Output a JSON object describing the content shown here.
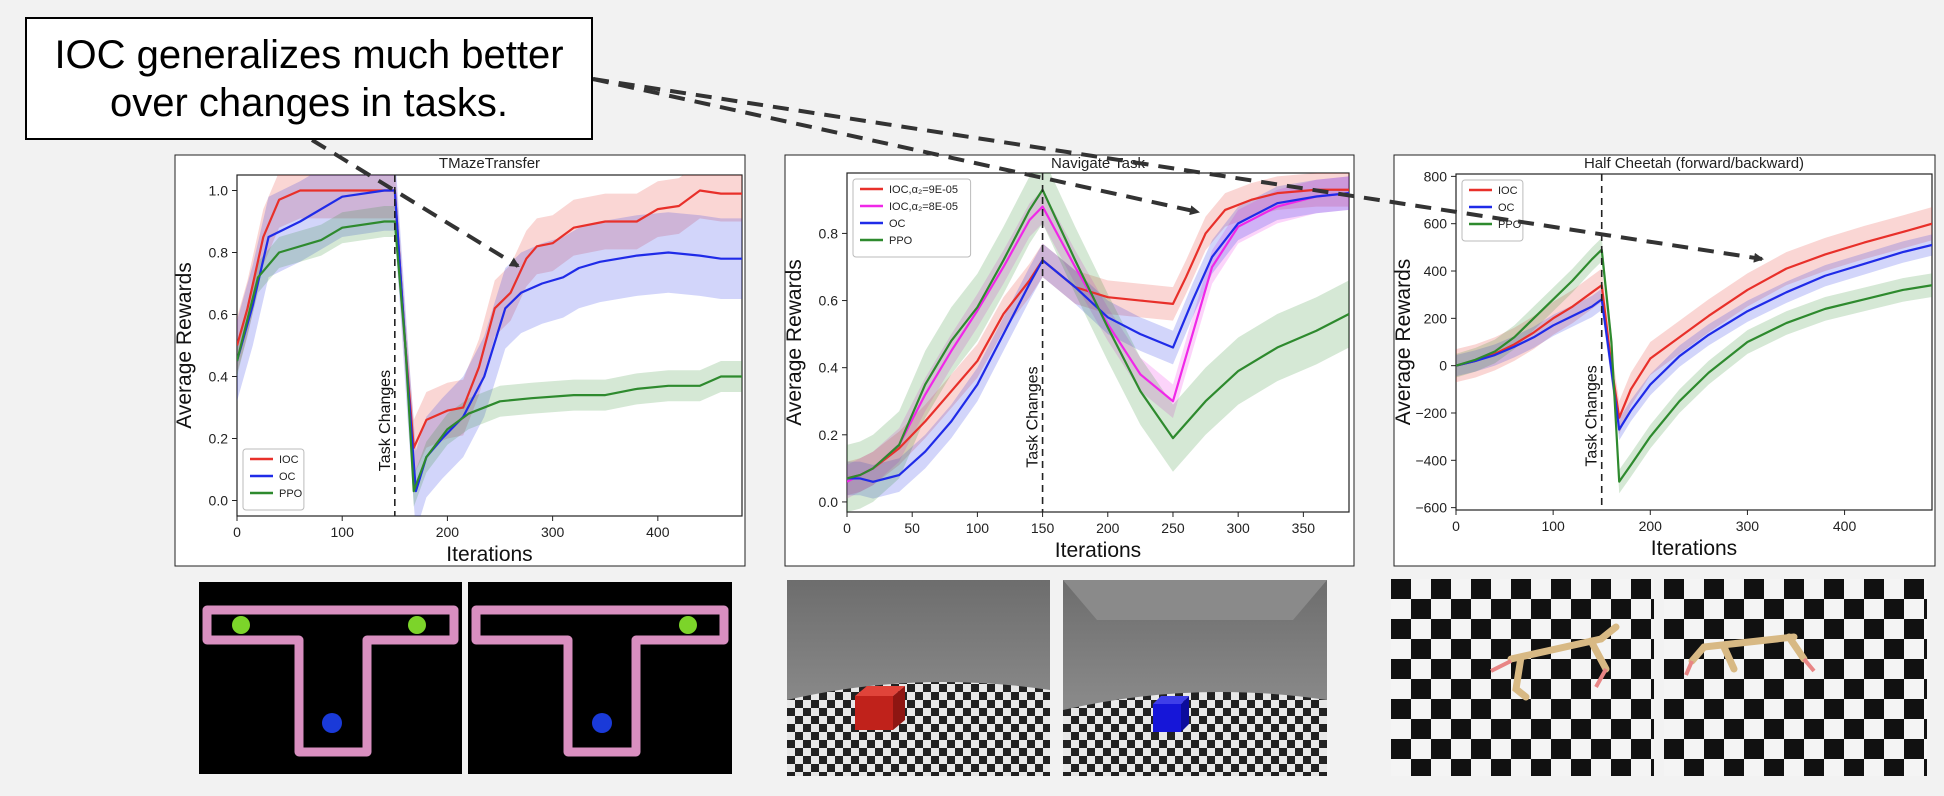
{
  "callout": {
    "text": "IOC generalizes much better over changes in tasks."
  },
  "colors": {
    "IOC": "#e8302a",
    "IOC_b": "#f028e8",
    "OC": "#1f2be8",
    "PPO": "#2e8a2e",
    "annotation": "#333333"
  },
  "chart_data": [
    {
      "type": "line",
      "title": "TMazeTransfer",
      "xlabel": "Iterations",
      "ylabel": "Average Rewards",
      "xlim": [
        0,
        480
      ],
      "ylim": [
        -0.05,
        1.05
      ],
      "xticks": [
        0,
        100,
        200,
        300,
        400
      ],
      "yticks": [
        0.0,
        0.2,
        0.4,
        0.6,
        0.8,
        1.0
      ],
      "ytick_labels": [
        "0.0",
        "0.2",
        "0.4",
        "0.6",
        "0.8",
        "1.0"
      ],
      "marker": {
        "x": 150,
        "label": "Task Changes"
      },
      "legend": {
        "placement": "bottom-left"
      },
      "series": [
        {
          "name": "IOC",
          "color_key": "IOC",
          "points": [
            [
              0,
              0.5
            ],
            [
              10,
              0.62
            ],
            [
              25,
              0.85
            ],
            [
              40,
              0.97
            ],
            [
              60,
              1.0
            ],
            [
              100,
              1.0
            ],
            [
              150,
              1.0
            ],
            [
              160,
              0.5
            ],
            [
              168,
              0.17
            ],
            [
              180,
              0.26
            ],
            [
              200,
              0.29
            ],
            [
              215,
              0.3
            ],
            [
              230,
              0.43
            ],
            [
              245,
              0.62
            ],
            [
              260,
              0.67
            ],
            [
              275,
              0.78
            ],
            [
              285,
              0.82
            ],
            [
              300,
              0.83
            ],
            [
              320,
              0.88
            ],
            [
              350,
              0.9
            ],
            [
              380,
              0.9
            ],
            [
              400,
              0.94
            ],
            [
              420,
              0.95
            ],
            [
              440,
              1.0
            ],
            [
              460,
              0.99
            ],
            [
              480,
              0.99
            ]
          ],
          "band": 0.09
        },
        {
          "name": "OC",
          "color_key": "OC",
          "points": [
            [
              0,
              0.45
            ],
            [
              15,
              0.63
            ],
            [
              30,
              0.85
            ],
            [
              60,
              0.9
            ],
            [
              100,
              0.98
            ],
            [
              140,
              1.0
            ],
            [
              150,
              1.0
            ],
            [
              162,
              0.4
            ],
            [
              170,
              0.03
            ],
            [
              180,
              0.14
            ],
            [
              195,
              0.2
            ],
            [
              215,
              0.27
            ],
            [
              235,
              0.4
            ],
            [
              255,
              0.62
            ],
            [
              270,
              0.67
            ],
            [
              290,
              0.7
            ],
            [
              310,
              0.72
            ],
            [
              325,
              0.75
            ],
            [
              345,
              0.77
            ],
            [
              380,
              0.79
            ],
            [
              410,
              0.8
            ],
            [
              440,
              0.79
            ],
            [
              460,
              0.78
            ],
            [
              480,
              0.78
            ]
          ],
          "band": 0.13
        },
        {
          "name": "PPO",
          "color_key": "PPO",
          "points": [
            [
              0,
              0.45
            ],
            [
              20,
              0.72
            ],
            [
              40,
              0.8
            ],
            [
              80,
              0.84
            ],
            [
              100,
              0.88
            ],
            [
              140,
              0.9
            ],
            [
              150,
              0.9
            ],
            [
              160,
              0.5
            ],
            [
              168,
              0.03
            ],
            [
              180,
              0.14
            ],
            [
              200,
              0.23
            ],
            [
              220,
              0.28
            ],
            [
              250,
              0.32
            ],
            [
              280,
              0.33
            ],
            [
              320,
              0.34
            ],
            [
              350,
              0.34
            ],
            [
              380,
              0.36
            ],
            [
              410,
              0.37
            ],
            [
              440,
              0.37
            ],
            [
              460,
              0.4
            ],
            [
              480,
              0.4
            ]
          ],
          "band": 0.05
        }
      ]
    },
    {
      "type": "line",
      "title": "Navigate Task",
      "xlabel": "Iterations",
      "ylabel": "Average Rewards",
      "xlim": [
        0,
        385
      ],
      "ylim": [
        -0.03,
        0.98
      ],
      "xticks": [
        0,
        50,
        100,
        150,
        200,
        250,
        300,
        350
      ],
      "yticks": [
        0.0,
        0.2,
        0.4,
        0.6,
        0.8
      ],
      "ytick_labels": [
        "0.0",
        "0.2",
        "0.4",
        "0.6",
        "0.8"
      ],
      "marker": {
        "x": 150,
        "label": "Task Changes"
      },
      "legend": {
        "placement": "top-left"
      },
      "series": [
        {
          "name": "IOC,α₂=9E-05",
          "color_key": "IOC",
          "points": [
            [
              0,
              0.07
            ],
            [
              10,
              0.08
            ],
            [
              20,
              0.1
            ],
            [
              40,
              0.16
            ],
            [
              60,
              0.24
            ],
            [
              80,
              0.33
            ],
            [
              100,
              0.42
            ],
            [
              120,
              0.56
            ],
            [
              140,
              0.66
            ],
            [
              150,
              0.72
            ],
            [
              175,
              0.64
            ],
            [
              200,
              0.61
            ],
            [
              225,
              0.6
            ],
            [
              250,
              0.59
            ],
            [
              260,
              0.67
            ],
            [
              275,
              0.8
            ],
            [
              290,
              0.87
            ],
            [
              310,
              0.9
            ],
            [
              330,
              0.92
            ],
            [
              360,
              0.93
            ],
            [
              385,
              0.93
            ]
          ],
          "band": 0.05
        },
        {
          "name": "IOC,α₂=8E-05",
          "color_key": "IOC_b",
          "points": [
            [
              0,
              0.06
            ],
            [
              10,
              0.08
            ],
            [
              20,
              0.1
            ],
            [
              40,
              0.17
            ],
            [
              60,
              0.32
            ],
            [
              80,
              0.45
            ],
            [
              100,
              0.57
            ],
            [
              120,
              0.7
            ],
            [
              140,
              0.84
            ],
            [
              150,
              0.88
            ],
            [
              175,
              0.7
            ],
            [
              200,
              0.53
            ],
            [
              225,
              0.38
            ],
            [
              250,
              0.3
            ],
            [
              265,
              0.5
            ],
            [
              280,
              0.7
            ],
            [
              300,
              0.82
            ],
            [
              330,
              0.88
            ],
            [
              360,
              0.91
            ],
            [
              385,
              0.92
            ]
          ],
          "band": 0.05
        },
        {
          "name": "OC",
          "color_key": "OC",
          "points": [
            [
              0,
              0.07
            ],
            [
              10,
              0.07
            ],
            [
              20,
              0.06
            ],
            [
              40,
              0.08
            ],
            [
              60,
              0.15
            ],
            [
              80,
              0.24
            ],
            [
              100,
              0.35
            ],
            [
              120,
              0.5
            ],
            [
              140,
              0.65
            ],
            [
              150,
              0.72
            ],
            [
              175,
              0.64
            ],
            [
              200,
              0.55
            ],
            [
              225,
              0.5
            ],
            [
              250,
              0.46
            ],
            [
              265,
              0.6
            ],
            [
              280,
              0.73
            ],
            [
              300,
              0.83
            ],
            [
              330,
              0.89
            ],
            [
              360,
              0.91
            ],
            [
              385,
              0.92
            ]
          ],
          "band": 0.05
        },
        {
          "name": "PPO",
          "color_key": "PPO",
          "points": [
            [
              0,
              0.07
            ],
            [
              10,
              0.08
            ],
            [
              20,
              0.1
            ],
            [
              40,
              0.17
            ],
            [
              60,
              0.35
            ],
            [
              80,
              0.48
            ],
            [
              100,
              0.58
            ],
            [
              120,
              0.72
            ],
            [
              140,
              0.87
            ],
            [
              150,
              0.93
            ],
            [
              175,
              0.72
            ],
            [
              200,
              0.52
            ],
            [
              225,
              0.33
            ],
            [
              250,
              0.19
            ],
            [
              275,
              0.3
            ],
            [
              300,
              0.39
            ],
            [
              330,
              0.46
            ],
            [
              360,
              0.51
            ],
            [
              385,
              0.56
            ]
          ],
          "band": 0.1
        }
      ]
    },
    {
      "type": "line",
      "title": "Half Cheetah (forward/backward)",
      "xlabel": "Iterations",
      "ylabel": "Average Rewards",
      "xlim": [
        0,
        490
      ],
      "ylim": [
        -610,
        810
      ],
      "xticks": [
        0,
        100,
        200,
        300,
        400
      ],
      "yticks": [
        -600,
        -400,
        -200,
        0,
        200,
        400,
        600,
        800
      ],
      "ytick_labels": [
        "−600",
        "−400",
        "−200",
        "0",
        "200",
        "400",
        "600",
        "800"
      ],
      "marker": {
        "x": 150,
        "label": "Task Changes"
      },
      "legend": {
        "placement": "top-left"
      },
      "series": [
        {
          "name": "IOC",
          "color_key": "IOC",
          "points": [
            [
              0,
              0
            ],
            [
              20,
              20
            ],
            [
              40,
              50
            ],
            [
              60,
              90
            ],
            [
              80,
              140
            ],
            [
              100,
              200
            ],
            [
              120,
              250
            ],
            [
              140,
              310
            ],
            [
              150,
              340
            ],
            [
              160,
              0
            ],
            [
              168,
              -220
            ],
            [
              180,
              -100
            ],
            [
              200,
              30
            ],
            [
              230,
              120
            ],
            [
              260,
              210
            ],
            [
              300,
              320
            ],
            [
              340,
              410
            ],
            [
              380,
              470
            ],
            [
              420,
              520
            ],
            [
              460,
              565
            ],
            [
              490,
              600
            ]
          ],
          "band": 70
        },
        {
          "name": "OC",
          "color_key": "OC",
          "points": [
            [
              0,
              0
            ],
            [
              20,
              20
            ],
            [
              40,
              45
            ],
            [
              60,
              80
            ],
            [
              80,
              120
            ],
            [
              100,
              170
            ],
            [
              120,
              210
            ],
            [
              140,
              250
            ],
            [
              150,
              280
            ],
            [
              160,
              -20
            ],
            [
              168,
              -270
            ],
            [
              180,
              -190
            ],
            [
              200,
              -80
            ],
            [
              230,
              40
            ],
            [
              260,
              130
            ],
            [
              300,
              230
            ],
            [
              340,
              310
            ],
            [
              380,
              380
            ],
            [
              420,
              430
            ],
            [
              460,
              480
            ],
            [
              490,
              510
            ]
          ],
          "band": 45
        },
        {
          "name": "PPO",
          "color_key": "PPO",
          "points": [
            [
              0,
              0
            ],
            [
              20,
              25
            ],
            [
              40,
              60
            ],
            [
              60,
              120
            ],
            [
              80,
              200
            ],
            [
              100,
              280
            ],
            [
              120,
              360
            ],
            [
              140,
              450
            ],
            [
              150,
              490
            ],
            [
              160,
              100
            ],
            [
              168,
              -490
            ],
            [
              180,
              -420
            ],
            [
              200,
              -300
            ],
            [
              230,
              -150
            ],
            [
              260,
              -30
            ],
            [
              300,
              100
            ],
            [
              340,
              180
            ],
            [
              380,
              240
            ],
            [
              420,
              280
            ],
            [
              460,
              320
            ],
            [
              490,
              340
            ]
          ],
          "band": 50
        }
      ]
    }
  ],
  "thumbnails": [
    {
      "scene": "tmaze",
      "goal_side": "both"
    },
    {
      "scene": "tmaze",
      "goal_side": "right"
    },
    {
      "scene": "room",
      "cube_color": "#c0221b"
    },
    {
      "scene": "room",
      "cube_color": "#1616d8"
    },
    {
      "scene": "cheetah",
      "pose": "forward"
    },
    {
      "scene": "cheetah",
      "pose": "backward"
    }
  ]
}
